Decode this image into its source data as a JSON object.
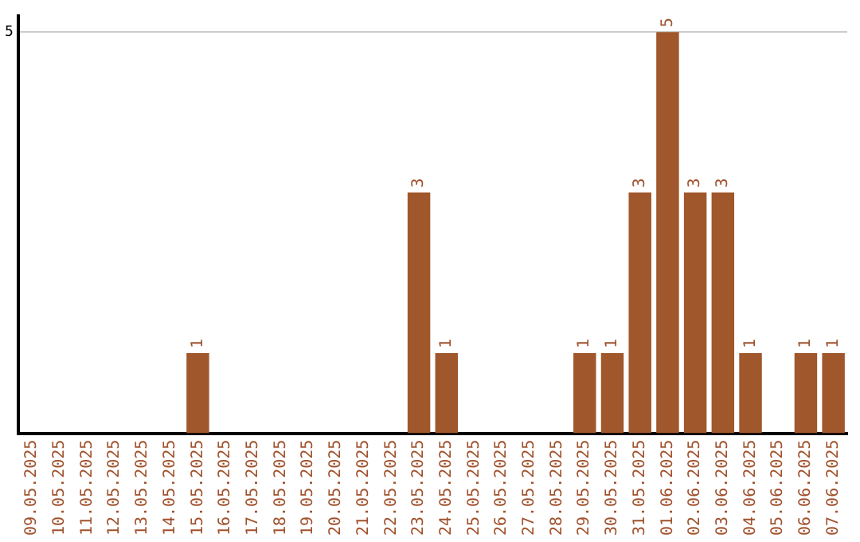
{
  "chart_data": {
    "type": "bar",
    "categories": [
      "09.05.2025",
      "10.05.2025",
      "11.05.2025",
      "12.05.2025",
      "13.05.2025",
      "14.05.2025",
      "15.05.2025",
      "16.05.2025",
      "17.05.2025",
      "18.05.2025",
      "19.05.2025",
      "20.05.2025",
      "21.05.2025",
      "22.05.2025",
      "23.05.2025",
      "24.05.2025",
      "25.05.2025",
      "26.05.2025",
      "27.05.2025",
      "28.05.2025",
      "29.05.2025",
      "30.05.2025",
      "31.05.2025",
      "01.06.2025",
      "02.06.2025",
      "03.06.2025",
      "04.06.2025",
      "05.06.2025",
      "06.06.2025",
      "07.06.2025"
    ],
    "values": [
      null,
      null,
      null,
      null,
      null,
      null,
      1,
      null,
      null,
      null,
      null,
      null,
      null,
      null,
      3,
      1,
      null,
      null,
      null,
      null,
      1,
      1,
      3,
      5,
      3,
      3,
      1,
      null,
      1,
      1
    ],
    "color": "#a0572b",
    "ylim": [
      0,
      5.2
    ],
    "yticks": [
      5
    ],
    "grid": "y",
    "data_labels": true,
    "legend": false
  }
}
